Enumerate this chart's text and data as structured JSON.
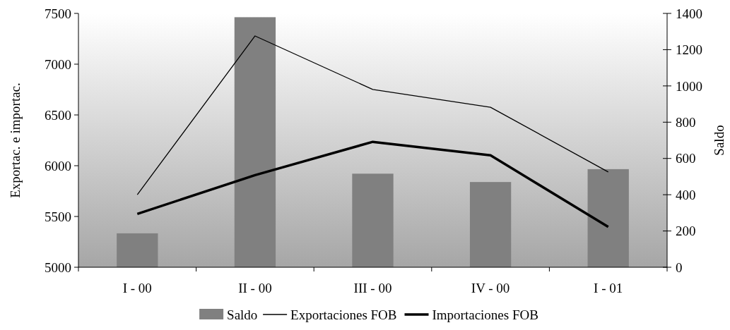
{
  "chart_data": {
    "type": "bar",
    "categories": [
      "I - 00",
      "II - 00",
      "III - 00",
      "IV - 00",
      "I - 01"
    ],
    "ylabel": "Exportac. e importac.",
    "y2label": "Saldo",
    "ylim": [
      5000,
      7500
    ],
    "yticks": [
      5000,
      5500,
      6000,
      6500,
      7000,
      7500
    ],
    "y2lim": [
      0,
      1400
    ],
    "y2ticks": [
      0,
      200,
      400,
      600,
      800,
      1000,
      1200,
      1400
    ],
    "legend": "bottom",
    "grid": false,
    "series": [
      {
        "name": "Saldo",
        "axis": "y2",
        "color": "#808080",
        "values": [
          187,
          1379,
          516,
          470,
          541
        ]
      },
      {
        "name": "Exportaciones FOB",
        "type": "line",
        "color": "#000000",
        "values": [
          5715,
          7278,
          6751,
          6576,
          5938
        ]
      },
      {
        "name": "Importaciones FOB",
        "type": "line",
        "color": "#000000",
        "values": [
          5525,
          5907,
          6235,
          6102,
          5398
        ]
      }
    ]
  }
}
